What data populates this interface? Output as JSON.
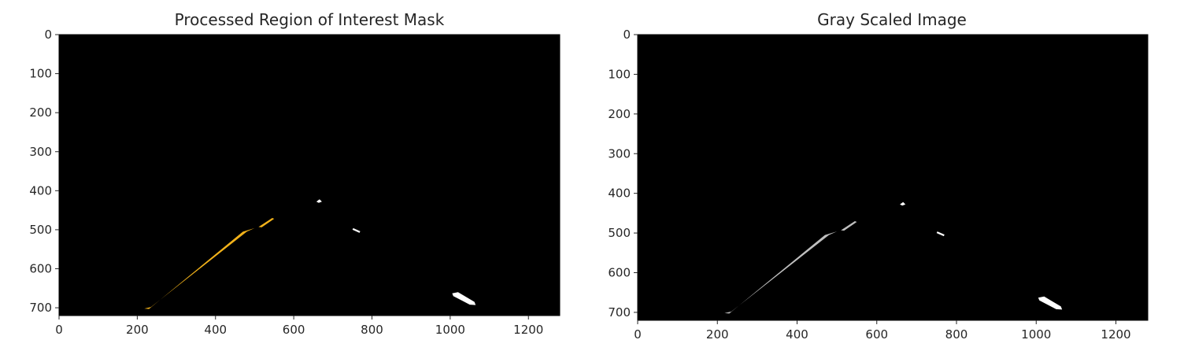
{
  "figure": {
    "background": "#ffffff",
    "image_background": "#000000",
    "text_color": "#262626"
  },
  "chart_data": [
    {
      "type": "image",
      "title": "Processed Region of Interest Mask",
      "xlabel": "",
      "ylabel": "",
      "xlim": [
        0,
        1280
      ],
      "ylim": [
        720,
        0
      ],
      "xticks": [
        0,
        200,
        400,
        600,
        800,
        1000,
        1200
      ],
      "yticks": [
        0,
        100,
        200,
        300,
        400,
        500,
        600,
        700
      ],
      "grid": false,
      "lane_marks": [
        {
          "name": "left-lane-line",
          "color": "#f2b21a",
          "points": [
            [
              218,
              702
            ],
            [
              235,
              698
            ],
            [
              480,
              505
            ],
            [
              500,
              496
            ],
            [
              470,
              505
            ],
            [
              230,
              703
            ]
          ]
        },
        {
          "name": "left-lane-fragment",
          "color": "#f2b21a",
          "points": [
            [
              510,
              493
            ],
            [
              545,
              470
            ],
            [
              550,
              472
            ],
            [
              518,
              494
            ]
          ]
        },
        {
          "name": "right-lane-top-dash",
          "color": "#ffffff",
          "points": [
            [
              658,
              428
            ],
            [
              666,
              422
            ],
            [
              672,
              428
            ],
            [
              664,
              431
            ]
          ]
        },
        {
          "name": "right-lane-dash",
          "color": "#ffffff",
          "points": [
            [
              752,
              496
            ],
            [
              770,
              504
            ],
            [
              768,
              508
            ],
            [
              750,
              500
            ]
          ]
        },
        {
          "name": "right-lane-bottom-dash",
          "color": "#ffffff",
          "points": [
            [
              1005,
              663
            ],
            [
              1020,
              660
            ],
            [
              1062,
              685
            ],
            [
              1065,
              693
            ],
            [
              1050,
              692
            ],
            [
              1008,
              670
            ]
          ]
        }
      ]
    },
    {
      "type": "image",
      "title": "Gray Scaled Image",
      "xlabel": "",
      "ylabel": "",
      "xlim": [
        0,
        1280
      ],
      "ylim": [
        720,
        0
      ],
      "xticks": [
        0,
        200,
        400,
        600,
        800,
        1000,
        1200
      ],
      "yticks": [
        0,
        100,
        200,
        300,
        400,
        500,
        600,
        700
      ],
      "grid": false,
      "lane_marks": [
        {
          "name": "left-lane-line",
          "color": "#bfbfbf",
          "points": [
            [
              218,
              702
            ],
            [
              235,
              698
            ],
            [
              480,
              505
            ],
            [
              500,
              496
            ],
            [
              470,
              505
            ],
            [
              230,
              703
            ]
          ]
        },
        {
          "name": "left-lane-fragment",
          "color": "#bfbfbf",
          "points": [
            [
              510,
              493
            ],
            [
              545,
              470
            ],
            [
              550,
              472
            ],
            [
              518,
              494
            ]
          ]
        },
        {
          "name": "right-lane-top-dash",
          "color": "#ffffff",
          "points": [
            [
              658,
              428
            ],
            [
              666,
              422
            ],
            [
              672,
              428
            ],
            [
              664,
              431
            ]
          ]
        },
        {
          "name": "right-lane-dash",
          "color": "#ffffff",
          "points": [
            [
              752,
              496
            ],
            [
              770,
              504
            ],
            [
              768,
              508
            ],
            [
              750,
              500
            ]
          ]
        },
        {
          "name": "right-lane-bottom-dash",
          "color": "#ffffff",
          "points": [
            [
              1005,
              663
            ],
            [
              1020,
              660
            ],
            [
              1062,
              685
            ],
            [
              1065,
              693
            ],
            [
              1050,
              692
            ],
            [
              1008,
              670
            ]
          ]
        }
      ]
    }
  ]
}
